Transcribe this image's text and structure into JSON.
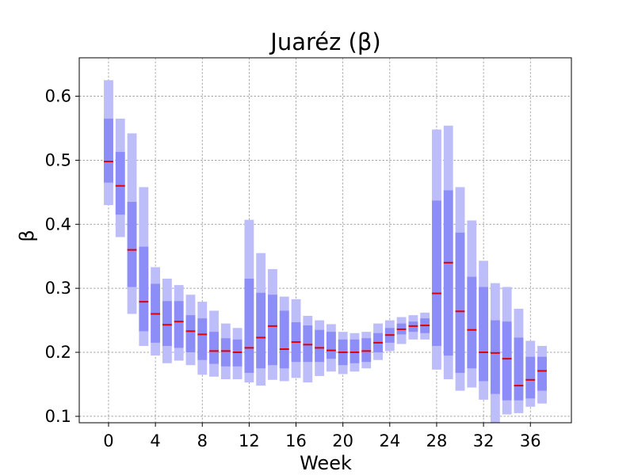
{
  "chart_data": {
    "type": "boxplot",
    "title": "Juaréz (β)",
    "xlabel": "Week",
    "ylabel": "β",
    "xlim": [
      -2.5,
      39.5
    ],
    "ylim": [
      0.09,
      0.66
    ],
    "xticks": [
      0,
      4,
      8,
      12,
      16,
      20,
      24,
      28,
      32,
      36
    ],
    "yticks": [
      0.1,
      0.2,
      0.3,
      0.4,
      0.5,
      0.6
    ],
    "ytick_labels": [
      "0.1",
      "0.2",
      "0.3",
      "0.4",
      "0.5",
      "0.6"
    ],
    "grid": true,
    "colors": {
      "outer": "#bdbdf9",
      "inner": "#8d8df7",
      "median": "#e00000",
      "grid": "#888888"
    },
    "weeks": [
      0,
      1,
      2,
      3,
      4,
      5,
      6,
      7,
      8,
      9,
      10,
      11,
      12,
      13,
      14,
      15,
      16,
      17,
      18,
      19,
      20,
      21,
      22,
      23,
      24,
      25,
      26,
      27,
      28,
      29,
      30,
      31,
      32,
      33,
      34,
      35,
      36,
      37
    ],
    "outer_low": [
      0.43,
      0.38,
      0.26,
      0.21,
      0.195,
      0.183,
      0.187,
      0.18,
      0.165,
      0.162,
      0.158,
      0.158,
      0.153,
      0.148,
      0.157,
      0.155,
      0.16,
      0.153,
      0.163,
      0.17,
      0.166,
      0.17,
      0.175,
      0.188,
      0.202,
      0.213,
      0.22,
      0.22,
      0.173,
      0.158,
      0.14,
      0.145,
      0.126,
      0.085,
      0.103,
      0.105,
      0.115,
      0.12
    ],
    "inner_low": [
      0.465,
      0.415,
      0.302,
      0.233,
      0.215,
      0.21,
      0.207,
      0.2,
      0.188,
      0.182,
      0.178,
      0.178,
      0.168,
      0.175,
      0.18,
      0.175,
      0.185,
      0.185,
      0.185,
      0.19,
      0.18,
      0.183,
      0.185,
      0.2,
      0.215,
      0.228,
      0.232,
      0.23,
      0.21,
      0.195,
      0.168,
      0.175,
      0.155,
      0.135,
      0.125,
      0.125,
      0.128,
      0.14
    ],
    "median": [
      0.498,
      0.46,
      0.36,
      0.279,
      0.26,
      0.243,
      0.248,
      0.233,
      0.228,
      0.202,
      0.202,
      0.2,
      0.207,
      0.223,
      0.241,
      0.205,
      0.216,
      0.212,
      0.207,
      0.203,
      0.2,
      0.2,
      0.202,
      0.215,
      0.227,
      0.236,
      0.241,
      0.242,
      0.292,
      0.34,
      0.264,
      0.235,
      0.2,
      0.199,
      0.19,
      0.148,
      0.157,
      0.171
    ],
    "inner_high": [
      0.565,
      0.513,
      0.435,
      0.365,
      0.307,
      0.28,
      0.28,
      0.258,
      0.253,
      0.232,
      0.222,
      0.22,
      0.315,
      0.293,
      0.29,
      0.265,
      0.247,
      0.242,
      0.235,
      0.232,
      0.22,
      0.22,
      0.222,
      0.23,
      0.238,
      0.245,
      0.248,
      0.253,
      0.437,
      0.453,
      0.387,
      0.318,
      0.302,
      0.25,
      0.248,
      0.223,
      0.193,
      0.193
    ],
    "outer_high": [
      0.625,
      0.565,
      0.542,
      0.458,
      0.333,
      0.315,
      0.305,
      0.29,
      0.279,
      0.265,
      0.245,
      0.238,
      0.407,
      0.355,
      0.33,
      0.287,
      0.283,
      0.257,
      0.25,
      0.244,
      0.232,
      0.23,
      0.232,
      0.245,
      0.25,
      0.255,
      0.258,
      0.262,
      0.548,
      0.554,
      0.458,
      0.406,
      0.343,
      0.308,
      0.302,
      0.268,
      0.218,
      0.21
    ]
  }
}
